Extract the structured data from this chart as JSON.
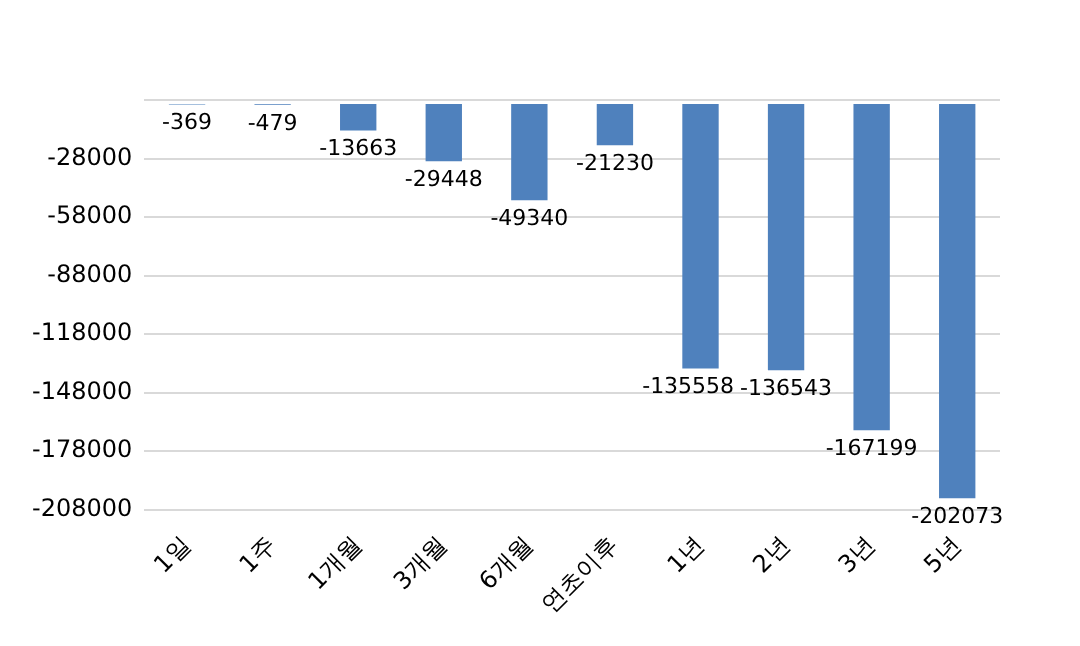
{
  "chart_data": {
    "type": "bar",
    "categories": [
      "1일",
      "1주",
      "1개월",
      "3개월",
      "6개월",
      "연초이후",
      "1년",
      "2년",
      "3년",
      "5년"
    ],
    "values": [
      -369,
      -479,
      -13663,
      -29448,
      -49340,
      -21230,
      -135558,
      -136543,
      -167199,
      -202073
    ],
    "color": "#4f81bd",
    "ylim": [
      -208000,
      2000
    ],
    "yticks": [
      {
        "value": 2000,
        "label": null
      },
      -28000,
      -58000,
      -88000,
      -118000,
      -148000,
      -178000,
      -208000
    ],
    "grid": "y",
    "data_labels": true,
    "legend": false
  }
}
